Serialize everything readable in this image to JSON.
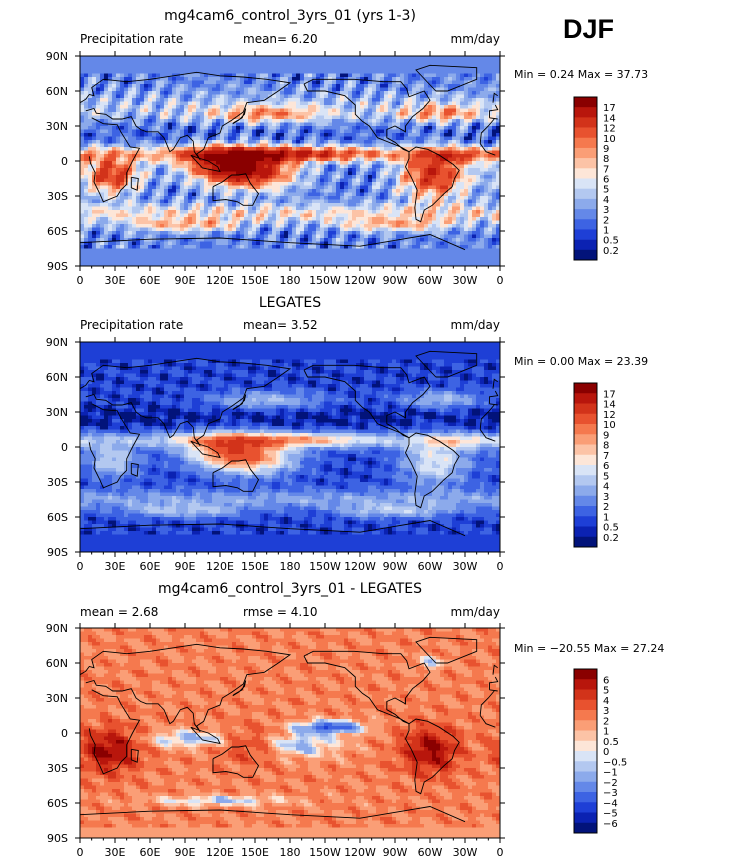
{
  "season_label": "DJF",
  "chart_data": [
    {
      "type": "heatmap",
      "title": "mg4cam6_control_3yrs_01 (yrs 1-3)",
      "left_label": "Precipitation rate",
      "center_label": "mean=   6.20",
      "right_label": "mm/day",
      "stats_label": "Min =   0.24 Max =  37.73",
      "mean": 6.2,
      "min": 0.24,
      "max": 37.73,
      "x_ticks": [
        "0",
        "30E",
        "60E",
        "90E",
        "120E",
        "150E",
        "180",
        "150W",
        "120W",
        "90W",
        "60W",
        "30W",
        "0"
      ],
      "y_ticks": [
        "90N",
        "60N",
        "30N",
        "0",
        "30S",
        "60S",
        "90S"
      ],
      "colorbar": {
        "labels": [
          "17",
          "14",
          "12",
          "10",
          "9",
          "8",
          "7",
          "6",
          "5",
          "4",
          "3",
          "2",
          "1",
          "0.5",
          "0.2"
        ],
        "colors": [
          "#8a0000",
          "#b8160c",
          "#d2331a",
          "#e8522f",
          "#f5794e",
          "#fa9e76",
          "#fcc3a6",
          "#fde6d8",
          "#d9e4f6",
          "#b3c8f0",
          "#8caaeb",
          "#6488e8",
          "#3d63e3",
          "#1e3fd6",
          "#0b22b2",
          "#02137a"
        ]
      },
      "field": "model"
    },
    {
      "type": "heatmap",
      "title": "LEGATES",
      "left_label": "Precipitation rate",
      "center_label": "mean=   3.52",
      "right_label": "mm/day",
      "stats_label": "Min =   0.00 Max =  23.39",
      "mean": 3.52,
      "min": 0.0,
      "max": 23.39,
      "x_ticks": [
        "0",
        "30E",
        "60E",
        "90E",
        "120E",
        "150E",
        "180",
        "150W",
        "120W",
        "90W",
        "60W",
        "30W",
        "0"
      ],
      "y_ticks": [
        "90N",
        "60N",
        "30N",
        "0",
        "30S",
        "60S",
        "90S"
      ],
      "colorbar": {
        "labels": [
          "17",
          "14",
          "12",
          "10",
          "9",
          "8",
          "7",
          "6",
          "5",
          "4",
          "3",
          "2",
          "1",
          "0.5",
          "0.2"
        ],
        "colors": [
          "#8a0000",
          "#b8160c",
          "#d2331a",
          "#e8522f",
          "#f5794e",
          "#fa9e76",
          "#fcc3a6",
          "#fde6d8",
          "#d9e4f6",
          "#b3c8f0",
          "#8caaeb",
          "#6488e8",
          "#3d63e3",
          "#1e3fd6",
          "#0b22b2",
          "#02137a"
        ]
      },
      "field": "obs"
    },
    {
      "type": "heatmap",
      "title": "mg4cam6_control_3yrs_01 - LEGATES",
      "left_label": "mean =   2.68",
      "center_label": "rmse =   4.10",
      "right_label": "mm/day",
      "stats_label": "Min = −20.55 Max =  27.24",
      "mean": 2.68,
      "rmse": 4.1,
      "min": -20.55,
      "max": 27.24,
      "x_ticks": [
        "0",
        "30E",
        "60E",
        "90E",
        "120E",
        "150E",
        "180",
        "150W",
        "120W",
        "90W",
        "60W",
        "30W",
        "0"
      ],
      "y_ticks": [
        "90N",
        "60N",
        "30N",
        "0",
        "30S",
        "60S",
        "90S"
      ],
      "colorbar": {
        "labels": [
          "6",
          "5",
          "4",
          "3",
          "2",
          "1",
          "0.5",
          "0",
          "−0.5",
          "−1",
          "−2",
          "−3",
          "−4",
          "−5",
          "−6"
        ],
        "colors": [
          "#8a0000",
          "#b8160c",
          "#d2331a",
          "#e8522f",
          "#f5794e",
          "#fa9e76",
          "#fcc3a6",
          "#fde6d8",
          "#d9e4f6",
          "#b3c8f0",
          "#8caaeb",
          "#6488e8",
          "#3d63e3",
          "#1e3fd6",
          "#0b22b2",
          "#02137a"
        ]
      },
      "field": "diff"
    }
  ]
}
